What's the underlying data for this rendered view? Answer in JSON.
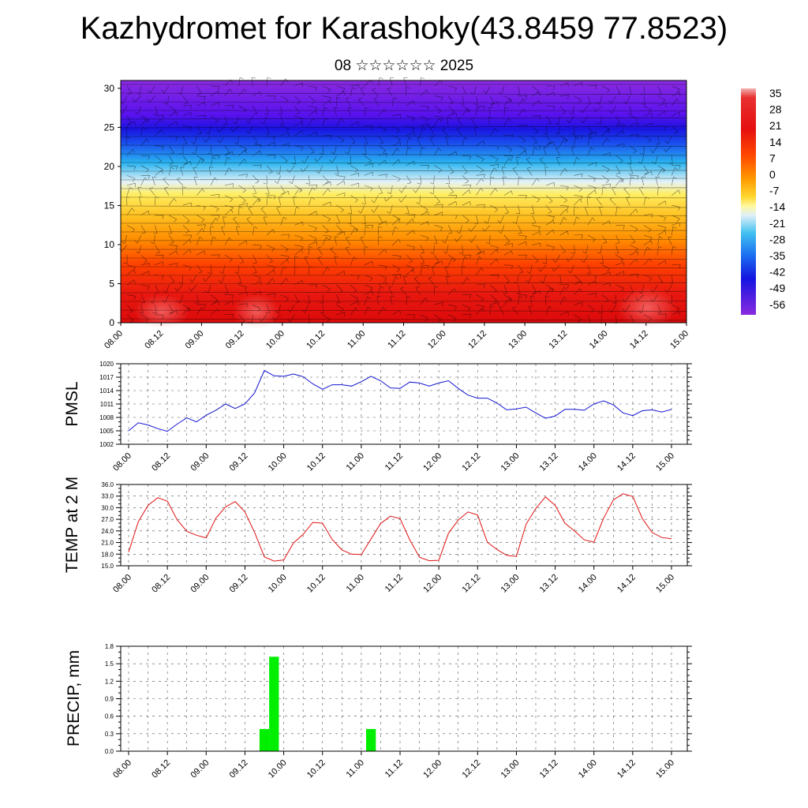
{
  "title": "Kazhydromet for Karashoky(43.8459 77.8523)",
  "subtitle": "08 ☆☆☆☆☆☆ 2025",
  "colors": {
    "pmsl_line": "#1414d2",
    "temp_line": "#e01414",
    "precip_bar": "#00ee00",
    "grid": "#555555"
  },
  "chart_data": [
    {
      "id": "upper-air",
      "type": "heatmap",
      "x_tick_labels": [
        "08.00",
        "08.12",
        "09.00",
        "09.12",
        "10.00",
        "10.12",
        "11.00",
        "11.12",
        "12.00",
        "12.12",
        "13.00",
        "13.12",
        "14.00",
        "14.12",
        "15.00"
      ],
      "y_tick_labels": [
        "0",
        "5",
        "10",
        "15",
        "20",
        "25",
        "30"
      ],
      "ylim": [
        0,
        31
      ],
      "colorbar_labels": [
        "35",
        "28",
        "21",
        "14",
        "7",
        "0",
        "-7",
        "-14",
        "-21",
        "-28",
        "-35",
        "-42",
        "-49",
        "-56"
      ],
      "note_overlay": "wind barbs"
    },
    {
      "id": "pmsl",
      "type": "line",
      "ylabel": "PMSL",
      "ylim": [
        1002,
        1020
      ],
      "y_tick_labels": [
        "1002",
        "1005",
        "1008",
        "1011",
        "1014",
        "1017",
        "1020"
      ],
      "x_tick_labels": [
        "08.00",
        "08.12",
        "09.00",
        "09.12",
        "10.00",
        "10.12",
        "11.00",
        "11.12",
        "12.00",
        "12.12",
        "13.00",
        "13.12",
        "14.00",
        "14.12",
        "15.00"
      ],
      "step_hours": 3,
      "values": [
        1005,
        1006.8,
        1006.3,
        1005.5,
        1004.9,
        1006.5,
        1007.9,
        1007,
        1008.5,
        1009.6,
        1011,
        1010,
        1011,
        1013.5,
        1018.5,
        1017.3,
        1017.2,
        1017.7,
        1017.1,
        1015.5,
        1014.3,
        1015.3,
        1015.3,
        1015,
        1016,
        1017.2,
        1016.2,
        1014.6,
        1014.5,
        1015.9,
        1015.7,
        1015,
        1015.7,
        1016.2,
        1014.5,
        1013,
        1012.3,
        1012.3,
        1011.2,
        1009.7,
        1009.9,
        1010.3,
        1009,
        1007.8,
        1008.3,
        1009.8,
        1009.8,
        1009.6,
        1011,
        1011.7,
        1010.8,
        1009,
        1008.4,
        1009.5,
        1009.7,
        1009.2,
        1009.8
      ]
    },
    {
      "id": "temp2m",
      "type": "line",
      "ylabel": "TEMP at 2 M",
      "ylim": [
        15,
        36
      ],
      "y_tick_labels": [
        "15.0",
        "18.0",
        "21.0",
        "24.0",
        "27.0",
        "30.0",
        "33.0",
        "36.0"
      ],
      "x_tick_labels": [
        "08.00",
        "08.12",
        "09.00",
        "09.12",
        "10.00",
        "10.12",
        "11.00",
        "11.12",
        "12.00",
        "12.12",
        "13.00",
        "13.12",
        "14.00",
        "14.12",
        "15.00"
      ],
      "step_hours": 3,
      "values": [
        18.5,
        26.4,
        30.6,
        32.6,
        31.7,
        26.9,
        23.9,
        22.9,
        22.2,
        27.3,
        30.2,
        31.6,
        28.9,
        23.6,
        17.3,
        16.2,
        16.5,
        20.9,
        23.1,
        26.2,
        26,
        21.8,
        19.1,
        18,
        17.9,
        21.9,
        25.9,
        27.8,
        27.2,
        21.7,
        17.2,
        16.3,
        16.4,
        23.4,
        26.8,
        28.9,
        28.1,
        21.1,
        19.2,
        17.7,
        17.4,
        25.7,
        29.8,
        32.8,
        30.6,
        26,
        24,
        21.7,
        21.1,
        27.3,
        32,
        33.6,
        32.9,
        27.2,
        23.6,
        22.3,
        22
      ]
    },
    {
      "id": "precip",
      "type": "bar",
      "ylabel": "PRECIP, mm",
      "ylim": [
        0,
        1.8
      ],
      "y_tick_labels": [
        "0.0",
        "0.3",
        "0.6",
        "0.9",
        "1.2",
        "1.5",
        "1.8"
      ],
      "x_tick_labels": [
        "08.00",
        "08.12",
        "09.00",
        "09.12",
        "10.00",
        "10.12",
        "11.00",
        "11.12",
        "12.00",
        "12.12",
        "13.00",
        "13.12",
        "14.00",
        "14.12",
        "15.00"
      ],
      "step_hours": 3,
      "bars": [
        {
          "step": 14,
          "value": 0.38
        },
        {
          "step": 15,
          "value": 1.62
        },
        {
          "step": 25,
          "value": 0.38
        }
      ]
    }
  ]
}
